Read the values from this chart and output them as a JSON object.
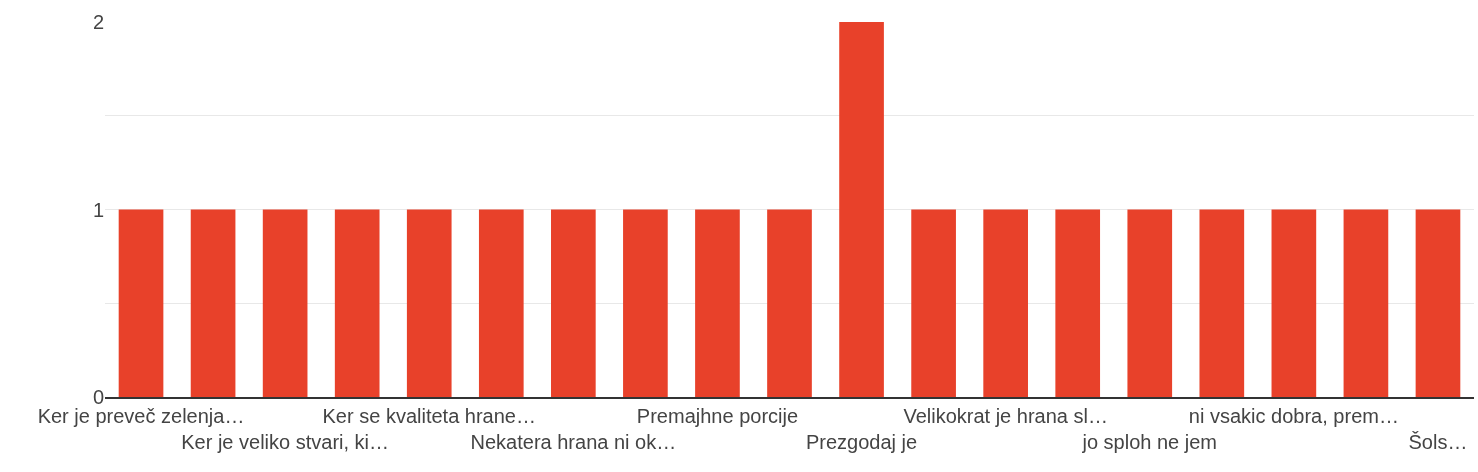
{
  "chart_data": {
    "type": "bar",
    "categories": [
      "Ker je preveč zelenja…",
      null,
      "Ker je veliko stvari, ki…",
      null,
      "Ker se kvaliteta hrane…",
      null,
      "Nekatera hrana ni ok…",
      null,
      "Premajhne porcije",
      null,
      "Prezgodaj je",
      null,
      "Velikokrat je hrana sl…",
      null,
      "jo sploh ne jem",
      null,
      "ni vsakic dobra, prem…",
      null,
      "Šols…"
    ],
    "values": [
      1,
      1,
      1,
      1,
      1,
      1,
      1,
      1,
      1,
      1,
      2,
      1,
      1,
      1,
      1,
      1,
      1,
      1,
      1
    ],
    "color": "#e8412a",
    "ylim": [
      0,
      2
    ],
    "yticks": [
      0,
      {
        "value": 0.5,
        "label": null
      },
      1,
      {
        "value": 1.5,
        "label": null
      },
      2
    ],
    "grid": "y",
    "legend": false
  }
}
